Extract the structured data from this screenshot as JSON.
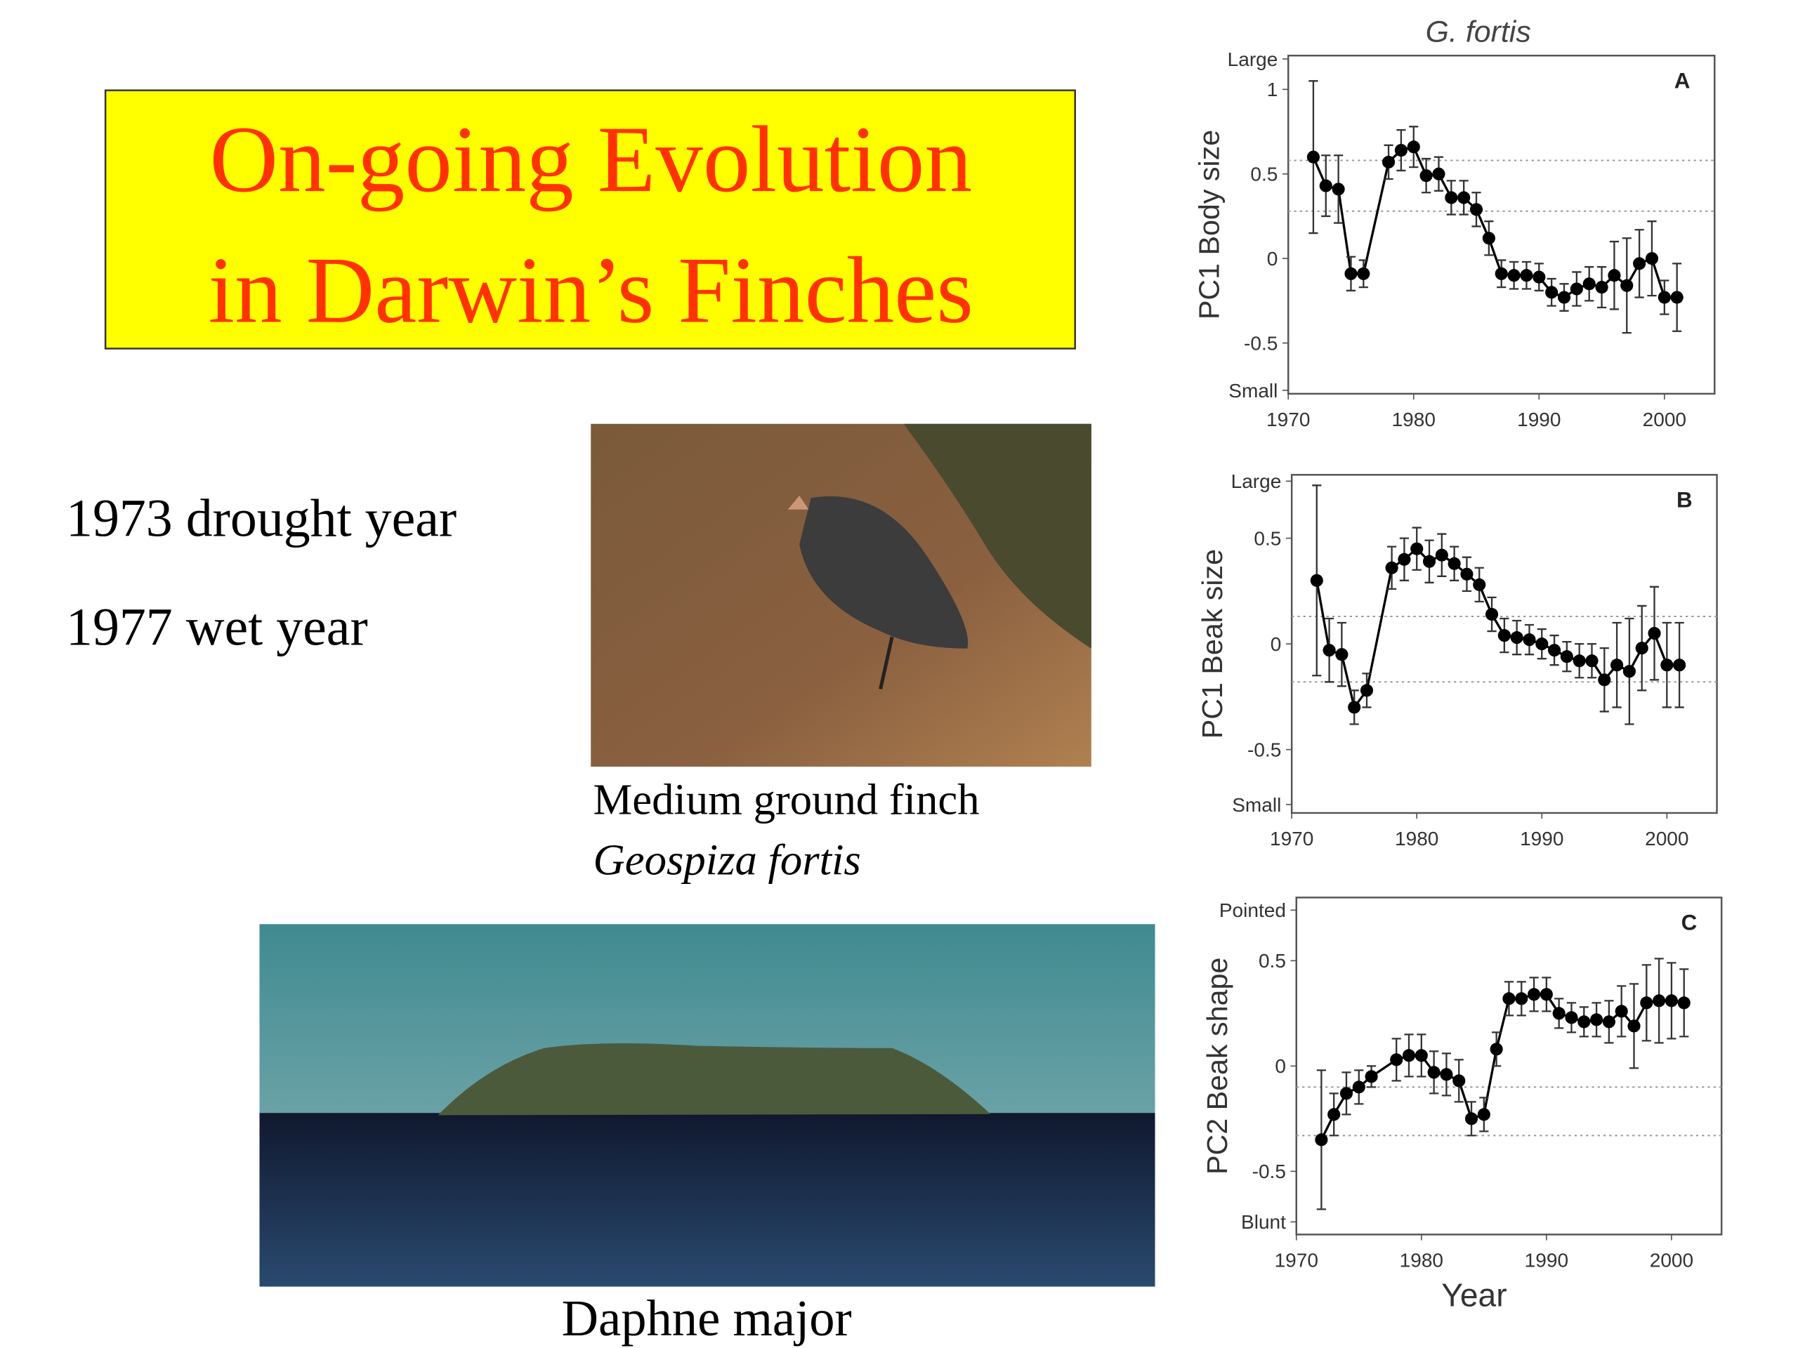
{
  "slide": {
    "title_lines": [
      "On-going Evolution",
      "in Darwin’s Finches"
    ],
    "notes": [
      "1973 drought year",
      "1977 wet year"
    ],
    "photo_caption": [
      "Medium ground finch",
      "Geospiza fortis"
    ],
    "island_caption": "Daphne major"
  },
  "chart_data": [
    {
      "type": "line",
      "title": "G. fortis",
      "panel": "A",
      "y_label": "PC1 Body size",
      "color": "#000000",
      "x": [
        1972,
        1973,
        1974,
        1975,
        1976,
        1978,
        1979,
        1980,
        1981,
        1982,
        1983,
        1984,
        1985,
        1986,
        1987,
        1988,
        1989,
        1990,
        1991,
        1992,
        1993,
        1994,
        1995,
        1996,
        1997,
        1998,
        1999,
        2000,
        2001
      ],
      "values": [
        0.6,
        0.43,
        0.41,
        -0.09,
        -0.09,
        0.57,
        0.64,
        0.66,
        0.49,
        0.5,
        0.36,
        0.36,
        0.29,
        0.12,
        -0.09,
        -0.1,
        -0.1,
        -0.11,
        -0.2,
        -0.23,
        -0.18,
        -0.15,
        -0.17,
        -0.1,
        -0.16,
        -0.03,
        0.0,
        -0.23,
        -0.23
      ],
      "errors": [
        0.45,
        0.18,
        0.2,
        0.1,
        0.08,
        0.1,
        0.12,
        0.12,
        0.1,
        0.1,
        0.1,
        0.1,
        0.1,
        0.1,
        0.08,
        0.08,
        0.08,
        0.08,
        0.08,
        0.08,
        0.1,
        0.1,
        0.12,
        0.2,
        0.28,
        0.2,
        0.22,
        0.1,
        0.2
      ],
      "xlim": [
        1970,
        2004
      ],
      "xticks": [
        1970,
        1980,
        1990,
        2000
      ],
      "ylim": [
        -0.8,
        1.2
      ],
      "yticks": [
        {
          "value": -0.78,
          "label": "Small"
        },
        -0.5,
        0,
        0.5,
        1,
        {
          "value": 1.18,
          "label": "Large"
        }
      ],
      "hlines": [
        0.58,
        0.28
      ]
    },
    {
      "type": "line",
      "panel": "B",
      "y_label": "PC1 Beak size",
      "color": "#000000",
      "x": [
        1972,
        1973,
        1974,
        1975,
        1976,
        1978,
        1979,
        1980,
        1981,
        1982,
        1983,
        1984,
        1985,
        1986,
        1987,
        1988,
        1989,
        1990,
        1991,
        1992,
        1993,
        1994,
        1995,
        1996,
        1997,
        1998,
        1999,
        2000,
        2001
      ],
      "values": [
        0.3,
        -0.03,
        -0.05,
        -0.3,
        -0.22,
        0.36,
        0.4,
        0.45,
        0.39,
        0.42,
        0.38,
        0.33,
        0.28,
        0.14,
        0.04,
        0.03,
        0.02,
        0.0,
        -0.03,
        -0.06,
        -0.08,
        -0.08,
        -0.17,
        -0.1,
        -0.13,
        -0.02,
        0.05,
        -0.1,
        -0.1
      ],
      "errors": [
        0.45,
        0.15,
        0.15,
        0.08,
        0.08,
        0.1,
        0.1,
        0.1,
        0.1,
        0.1,
        0.08,
        0.08,
        0.08,
        0.08,
        0.08,
        0.08,
        0.07,
        0.07,
        0.07,
        0.07,
        0.08,
        0.08,
        0.15,
        0.2,
        0.25,
        0.2,
        0.22,
        0.2,
        0.2
      ],
      "xlim": [
        1970,
        2004
      ],
      "xticks": [
        1970,
        1980,
        1990,
        2000
      ],
      "ylim": [
        -0.8,
        0.8
      ],
      "yticks": [
        {
          "value": -0.76,
          "label": "Small"
        },
        -0.5,
        0,
        0.5,
        {
          "value": 0.77,
          "label": "Large"
        }
      ],
      "hlines": [
        0.13,
        -0.18
      ]
    },
    {
      "type": "line",
      "panel": "C",
      "y_label": "PC2 Beak shape",
      "x_label": "Year",
      "color": "#000000",
      "x": [
        1972,
        1973,
        1974,
        1975,
        1976,
        1978,
        1979,
        1980,
        1981,
        1982,
        1983,
        1984,
        1985,
        1986,
        1987,
        1988,
        1989,
        1990,
        1991,
        1992,
        1993,
        1994,
        1995,
        1996,
        1997,
        1998,
        1999,
        2000,
        2001
      ],
      "values": [
        -0.35,
        -0.23,
        -0.13,
        -0.1,
        -0.05,
        0.03,
        0.05,
        0.05,
        -0.03,
        -0.04,
        -0.07,
        -0.25,
        -0.23,
        0.08,
        0.32,
        0.32,
        0.34,
        0.34,
        0.25,
        0.23,
        0.21,
        0.22,
        0.21,
        0.26,
        0.19,
        0.3,
        0.31,
        0.31,
        0.3
      ],
      "errors": [
        0.33,
        0.1,
        0.1,
        0.08,
        0.05,
        0.1,
        0.1,
        0.1,
        0.1,
        0.1,
        0.1,
        0.08,
        0.08,
        0.08,
        0.08,
        0.08,
        0.08,
        0.08,
        0.07,
        0.07,
        0.07,
        0.08,
        0.1,
        0.12,
        0.2,
        0.18,
        0.2,
        0.18,
        0.16
      ],
      "xlim": [
        1970,
        2004
      ],
      "xticks": [
        1970,
        1980,
        1990,
        2000
      ],
      "ylim": [
        -0.8,
        0.8
      ],
      "yticks": [
        {
          "value": -0.74,
          "label": "Blunt"
        },
        -0.5,
        0,
        0.5,
        {
          "value": 0.74,
          "label": "Pointed"
        }
      ],
      "hlines": [
        -0.1,
        -0.33
      ]
    }
  ]
}
